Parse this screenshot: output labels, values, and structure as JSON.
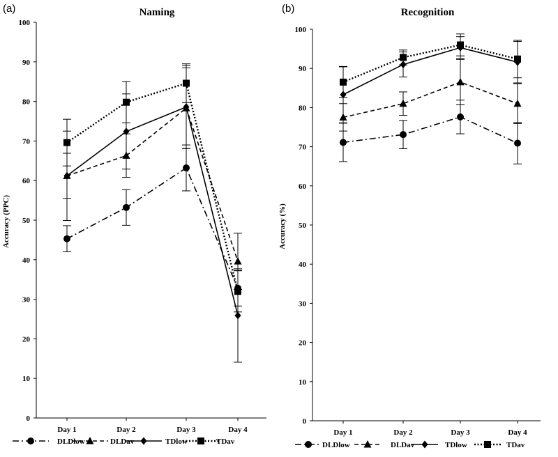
{
  "chart_data": [
    {
      "type": "line",
      "panel_label": "(a)",
      "title": "Naming",
      "xlabel": "",
      "ylabel": "Accuracy (PPC)",
      "ylim": [
        0,
        100
      ],
      "yticks": [
        0,
        10,
        20,
        30,
        40,
        50,
        60,
        70,
        80,
        90,
        100
      ],
      "categories": [
        "Day 1",
        "Day 2",
        "Day 3",
        "Day 4"
      ],
      "series": [
        {
          "name": "DLDlow",
          "marker": "circle",
          "dash": "dashdot",
          "values": [
            45.3,
            53.2,
            63.2,
            32.8
          ],
          "errors": [
            3.3,
            4.5,
            5.8,
            4.5
          ]
        },
        {
          "name": "DLDav",
          "marker": "triangle",
          "dash": "dashed",
          "values": [
            61.2,
            66.3,
            78.3,
            39.6
          ],
          "errors": [
            5.7,
            5.5,
            10.2,
            7.1
          ]
        },
        {
          "name": "TDlow",
          "marker": "diamond",
          "dash": "solid",
          "values": [
            61.2,
            72.4,
            78.6,
            25.9
          ],
          "errors": [
            11.3,
            9.5,
            10.5,
            11.8
          ]
        },
        {
          "name": "TDav",
          "marker": "square",
          "dash": "dotted",
          "values": [
            69.6,
            79.8,
            84.6,
            32.0
          ],
          "errors": [
            5.9,
            5.2,
            4.9,
            5.2
          ]
        }
      ],
      "legend": [
        "DLDlow",
        "DLDav",
        "TDlow",
        "TDav"
      ],
      "legend_position": "bottom",
      "grid": false
    },
    {
      "type": "line",
      "panel_label": "(b)",
      "title": "Recognition",
      "xlabel": "",
      "ylabel": "Accuracy (%)",
      "ylim": [
        0,
        100
      ],
      "yticks": [
        0,
        10,
        20,
        30,
        40,
        50,
        60,
        70,
        80,
        90,
        100
      ],
      "categories": [
        "Day 1",
        "Day 2",
        "Day 3",
        "Day 4"
      ],
      "series": [
        {
          "name": "DLDlow",
          "marker": "circle",
          "dash": "dashdot",
          "values": [
            71.1,
            73.1,
            77.6,
            70.9
          ],
          "errors": [
            4.9,
            3.6,
            4.3,
            5.3
          ]
        },
        {
          "name": "DLDav",
          "marker": "triangle",
          "dash": "dashed",
          "values": [
            77.5,
            81.0,
            86.5,
            81.0
          ],
          "errors": [
            3.5,
            3.0,
            5.8,
            5.1
          ]
        },
        {
          "name": "TDlow",
          "marker": "diamond",
          "dash": "solid",
          "values": [
            83.3,
            91.0,
            95.3,
            91.6
          ],
          "errors": [
            7.2,
            3.2,
            2.8,
            5.3
          ]
        },
        {
          "name": "TDav",
          "marker": "square",
          "dash": "dotted",
          "values": [
            86.5,
            92.8,
            96.0,
            92.4
          ],
          "errors": [
            3.9,
            1.9,
            2.8,
            4.8
          ]
        }
      ],
      "legend": [
        "DLDlow",
        "DLDav",
        "TDlow",
        "TDav"
      ],
      "legend_position": "bottom",
      "grid": false
    }
  ]
}
